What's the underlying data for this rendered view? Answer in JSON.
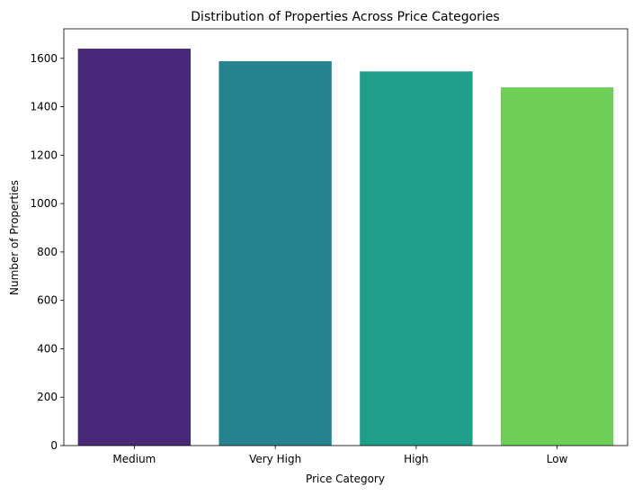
{
  "chart_data": {
    "type": "bar",
    "title": "Distribution of Properties Across Price Categories",
    "xlabel": "Price Category",
    "ylabel": "Number of Properties",
    "categories": [
      "Medium",
      "Very High",
      "High",
      "Low"
    ],
    "values": [
      1640,
      1588,
      1546,
      1480
    ],
    "colors": [
      "#482878",
      "#26828e",
      "#1f9e89",
      "#6ece58"
    ],
    "ylim": [
      0,
      1722
    ],
    "yticks": [
      0,
      200,
      400,
      600,
      800,
      1000,
      1200,
      1400,
      1600
    ],
    "grid": false,
    "legend": "none"
  }
}
